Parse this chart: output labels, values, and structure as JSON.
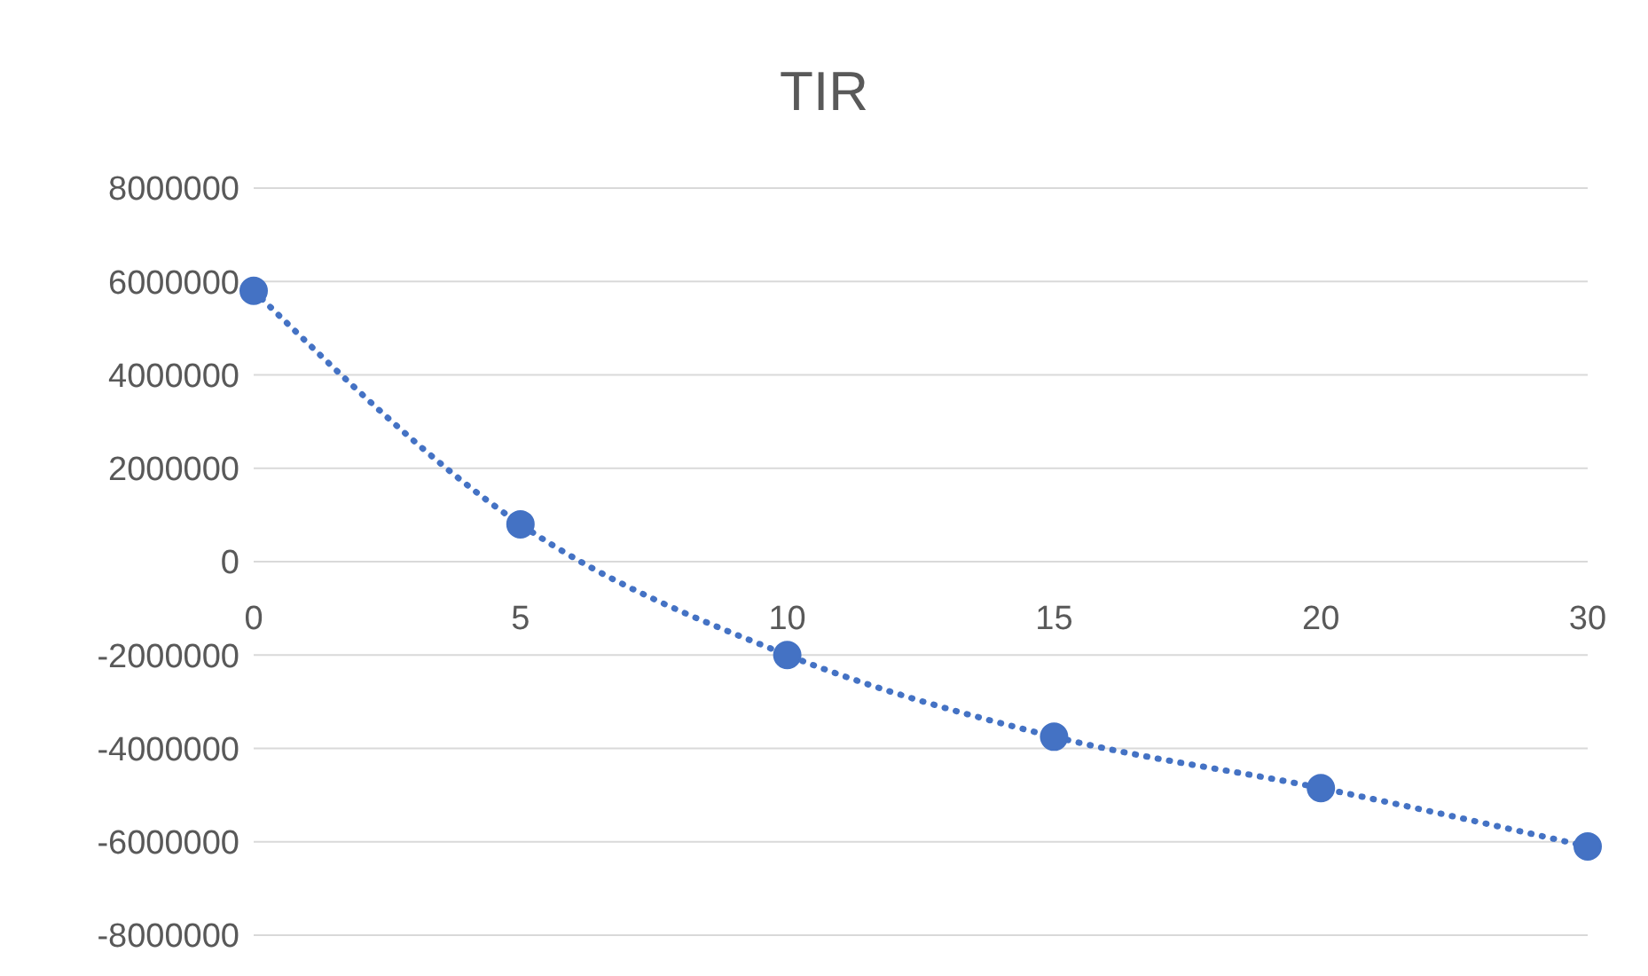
{
  "chart_data": {
    "type": "line",
    "title": "TIR",
    "categories": [
      "0",
      "5",
      "10",
      "15",
      "20",
      "30"
    ],
    "series": [
      {
        "color": "#4472c4",
        "values": [
          5800000,
          800000,
          -2000000,
          -3750000,
          -4850000,
          -6100000
        ]
      }
    ],
    "ylim": [
      -8000000,
      8000000
    ],
    "yticks": [
      -8000000,
      -6000000,
      -4000000,
      -2000000,
      0,
      2000000,
      4000000,
      6000000,
      8000000
    ],
    "grid": "y",
    "legend": false,
    "marker": "circle",
    "line_style": "dotted"
  }
}
